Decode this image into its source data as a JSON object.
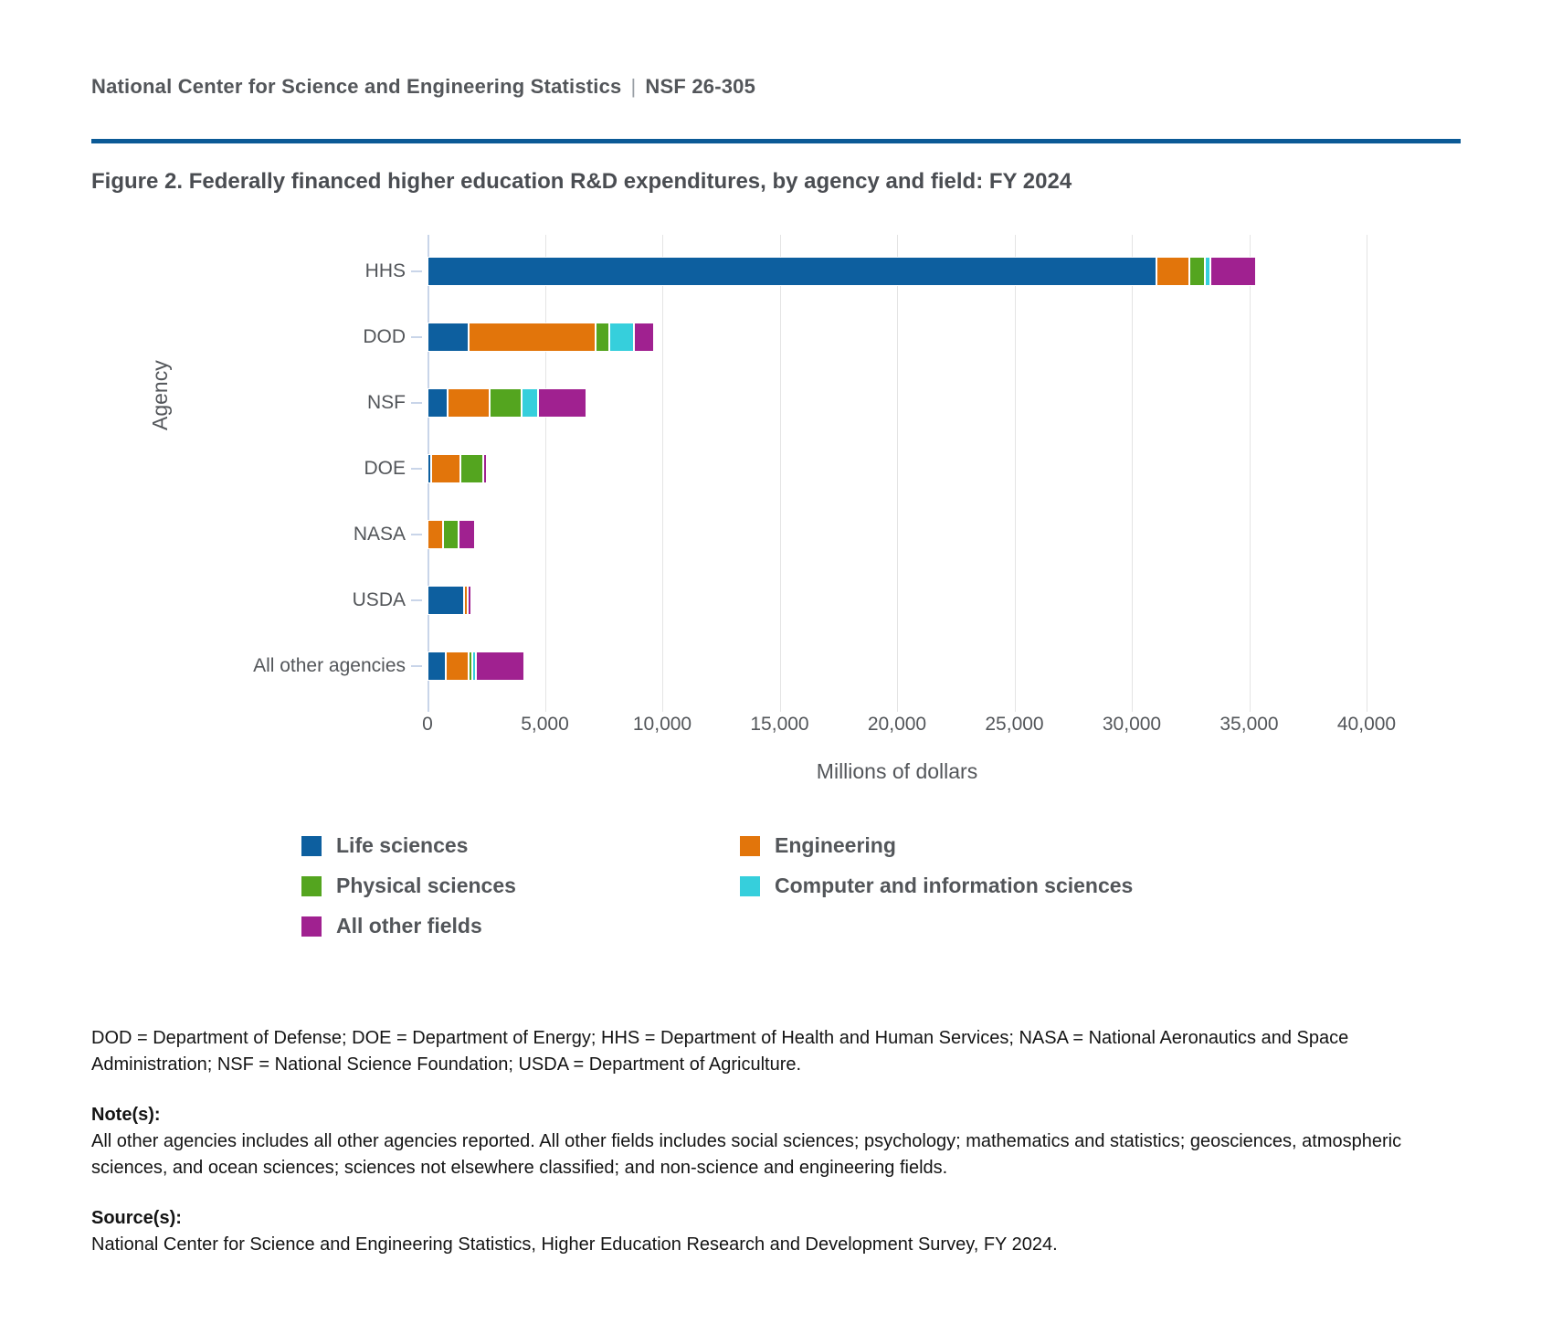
{
  "header": {
    "org": "National Center for Science and Engineering Statistics",
    "separator": "|",
    "report_id": "NSF 26-305"
  },
  "figure": {
    "title": "Figure 2. Federally financed higher education R&D expenditures, by agency and field: FY 2024"
  },
  "chart_data": {
    "type": "bar",
    "orientation": "horizontal",
    "stacked": true,
    "grid": true,
    "title": "Figure 2. Federally financed higher education R&D expenditures, by agency and field: FY 2024",
    "xlabel": "Millions of dollars",
    "ylabel": "Agency",
    "xlim": [
      0,
      40000
    ],
    "xtick_values": [
      0,
      5000,
      10000,
      15000,
      20000,
      25000,
      30000,
      35000,
      40000
    ],
    "xtick_labels": [
      "0",
      "5,000",
      "10,000",
      "15,000",
      "20,000",
      "25,000",
      "30,000",
      "35,000",
      "40,000"
    ],
    "categories": [
      "HHS",
      "DOD",
      "NSF",
      "DOE",
      "NASA",
      "USDA",
      "All other agencies"
    ],
    "series": [
      {
        "name": "Life sciences",
        "color": "#0d5f9f",
        "values": [
          31050,
          1750,
          870,
          170,
          0,
          1570,
          770
        ]
      },
      {
        "name": "Engineering",
        "color": "#e2750b",
        "values": [
          1400,
          5400,
          1790,
          1230,
          645,
          80,
          975
        ]
      },
      {
        "name": "Physical sciences",
        "color": "#54a51f",
        "values": [
          650,
          600,
          1340,
          980,
          670,
          0,
          90
        ]
      },
      {
        "name": "Computer and information sciences",
        "color": "#36cfdc",
        "values": [
          230,
          1060,
          710,
          0,
          0,
          0,
          155
        ]
      },
      {
        "name": "All other fields",
        "color": "#a02190",
        "values": [
          1950,
          840,
          2060,
          150,
          690,
          80,
          2075
        ]
      }
    ],
    "legend_columns": [
      [
        "Life sciences",
        "Physical sciences",
        "All other fields"
      ],
      [
        "Engineering",
        "Computer and information sciences"
      ]
    ],
    "legend_position": "bottom"
  },
  "footnotes": {
    "abbreviations": "DOD = Department of Defense; DOE = Department of Energy; HHS = Department of Health and Human Services; NASA = National Aeronautics and Space Administration; NSF = National Science Foundation; USDA = Department of Agriculture.",
    "notes_label": "Note(s):",
    "notes": "All other agencies includes all other agencies reported. All other fields includes social sciences; psychology; mathematics and statistics; geosciences, atmospheric sciences, and ocean sciences; sciences not elsewhere classified; and non-science and engineering fields.",
    "sources_label": "Source(s):",
    "sources": "National Center for Science and Engineering Statistics, Higher Education Research and Development Survey, FY 2024."
  },
  "colors": {
    "rule_blue": "#0b5a96",
    "axis_line": "#c9d5e9",
    "gridline": "#e4e4e4",
    "text_gray": "#53565a"
  }
}
